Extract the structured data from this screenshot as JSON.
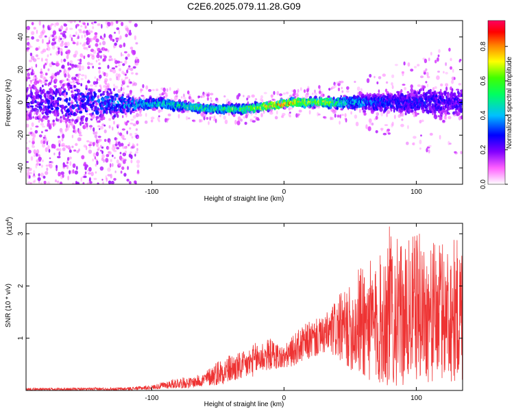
{
  "figure_title": "C2E6.2025.079.11.28.G09",
  "chart_data": [
    {
      "type": "heatmap",
      "title": "C2E6.2025.079.11.28.G09",
      "xlabel": "Height of straight line (km)",
      "ylabel": "Frequency (Hz)",
      "xlim": [
        -195,
        135
      ],
      "ylim": [
        -50,
        50
      ],
      "xticks": [
        -100,
        0,
        100
      ],
      "yticks": [
        -40,
        -20,
        0,
        20,
        40
      ],
      "colorbar": {
        "label": "Normalized spectral amplitude",
        "range": [
          0,
          0.95
        ],
        "ticks": [
          0.0,
          0.2,
          0.4,
          0.6,
          0.8
        ],
        "colormap": [
          "#ffffff",
          "#ff00ff",
          "#8000ff",
          "#0000ff",
          "#00c0ff",
          "#00ff80",
          "#00ff00",
          "#ffff00",
          "#ff8000",
          "#ff0000",
          "#ff0080"
        ]
      },
      "ridge": {
        "description_points_x_km": [
          -195,
          -150,
          -110,
          -90,
          -70,
          -50,
          -30,
          -10,
          0,
          10,
          30,
          50,
          70,
          90,
          110,
          135
        ],
        "center_freq_hz": [
          0,
          0,
          -1,
          -1,
          -3,
          -4,
          -4,
          -2,
          -1,
          0,
          0,
          0,
          0,
          0,
          0,
          0
        ],
        "peak_amplitude": [
          0.25,
          0.3,
          0.45,
          0.5,
          0.55,
          0.55,
          0.6,
          0.8,
          0.9,
          0.75,
          0.7,
          0.45,
          0.35,
          0.3,
          0.3,
          0.25
        ],
        "scatter_halfwidth_hz": [
          50,
          50,
          12,
          10,
          9,
          9,
          9,
          8,
          8,
          8,
          10,
          14,
          18,
          25,
          30,
          35
        ]
      },
      "tick_labels": {
        "x": [
          "-100",
          "0",
          "100"
        ],
        "y": [
          "-40",
          "-20",
          "0",
          "20",
          "40"
        ],
        "cb": [
          "0.0",
          "0.2",
          "0.4",
          "0.6",
          "0.8"
        ]
      }
    },
    {
      "type": "line",
      "xlabel": "Height of straight line (km)",
      "ylabel": "SNR (10 * v/v)",
      "multiplier_base": "(x10",
      "multiplier_exp": "4",
      "multiplier_close": ")",
      "xlim": [
        -195,
        135
      ],
      "ylim": [
        0,
        3.2
      ],
      "xticks": [
        -100,
        0,
        100
      ],
      "yticks": [
        1,
        2,
        3
      ],
      "series": [
        {
          "name": "SNR",
          "color": "#ee3333",
          "envelope_x_km": [
            -195,
            -160,
            -120,
            -100,
            -80,
            -70,
            -60,
            -50,
            -40,
            -30,
            -20,
            -10,
            0,
            10,
            20,
            30,
            40,
            50,
            60,
            70,
            80,
            90,
            100,
            110,
            120,
            135
          ],
          "envelope_upper": [
            0.05,
            0.05,
            0.06,
            0.1,
            0.25,
            0.25,
            0.35,
            0.6,
            0.7,
            0.75,
            0.95,
            1.0,
            0.85,
            1.15,
            1.35,
            1.4,
            1.8,
            2.0,
            2.6,
            2.4,
            3.2,
            2.7,
            3.1,
            2.8,
            2.9,
            2.95
          ],
          "envelope_lower": [
            0.0,
            0.0,
            0.0,
            0.02,
            0.04,
            0.05,
            0.08,
            0.1,
            0.15,
            0.2,
            0.3,
            0.4,
            0.4,
            0.5,
            0.6,
            0.7,
            0.6,
            0.4,
            0.2,
            0.1,
            0.05,
            0.1,
            0.2,
            0.15,
            0.2,
            0.1
          ]
        }
      ],
      "tick_labels": {
        "x": [
          "-100",
          "0",
          "100"
        ],
        "y": [
          "1",
          "2",
          "3"
        ]
      }
    }
  ]
}
